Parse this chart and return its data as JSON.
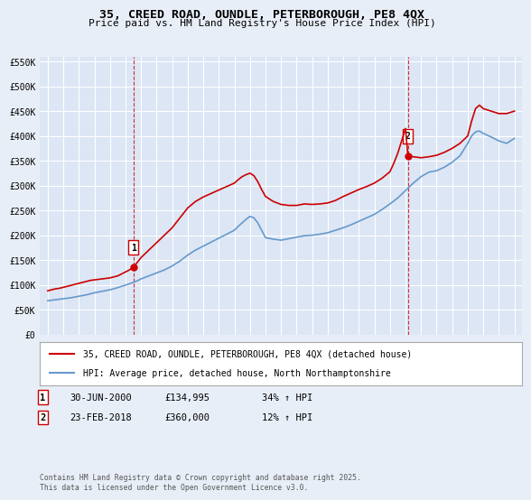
{
  "title_line1": "35, CREED ROAD, OUNDLE, PETERBOROUGH, PE8 4QX",
  "title_line2": "Price paid vs. HM Land Registry's House Price Index (HPI)",
  "bg_color": "#e8eef7",
  "plot_bg_color": "#dce6f5",
  "grid_color": "#ffffff",
  "ylim": [
    0,
    560000
  ],
  "yticks": [
    0,
    50000,
    100000,
    150000,
    200000,
    250000,
    300000,
    350000,
    400000,
    450000,
    500000,
    550000
  ],
  "ytick_labels": [
    "£0",
    "£50K",
    "£100K",
    "£150K",
    "£200K",
    "£250K",
    "£300K",
    "£350K",
    "£400K",
    "£450K",
    "£500K",
    "£550K"
  ],
  "xlim_start": 1994.5,
  "xlim_end": 2025.5,
  "xticks": [
    1995,
    1996,
    1997,
    1998,
    1999,
    2000,
    2001,
    2002,
    2003,
    2004,
    2005,
    2006,
    2007,
    2008,
    2009,
    2010,
    2011,
    2012,
    2013,
    2014,
    2015,
    2016,
    2017,
    2018,
    2019,
    2020,
    2021,
    2022,
    2023,
    2024,
    2025
  ],
  "red_line_color": "#cc0000",
  "blue_line_color": "#6699cc",
  "marker_color": "#cc0000",
  "vline_color": "#cc0000",
  "sale1_x": 2000.5,
  "sale1_y": 134995,
  "sale1_label": "1",
  "sale2_x": 2018.15,
  "sale2_y": 360000,
  "sale2_label": "2",
  "legend_label_red": "35, CREED ROAD, OUNDLE, PETERBOROUGH, PE8 4QX (detached house)",
  "legend_label_blue": "HPI: Average price, detached house, North Northamptonshire",
  "annotation1_date": "30-JUN-2000",
  "annotation1_price": "£134,995",
  "annotation1_hpi": "34% ↑ HPI",
  "annotation2_date": "23-FEB-2018",
  "annotation2_price": "£360,000",
  "annotation2_hpi": "12% ↑ HPI",
  "footer": "Contains HM Land Registry data © Crown copyright and database right 2025.\nThis data is licensed under the Open Government Licence v3.0.",
  "red_x": [
    1995.0,
    1995.25,
    1995.5,
    1995.75,
    1996.0,
    1996.25,
    1996.5,
    1996.75,
    1997.0,
    1997.25,
    1997.5,
    1997.75,
    1998.0,
    1998.25,
    1998.5,
    1998.75,
    1999.0,
    1999.25,
    1999.5,
    1999.75,
    2000.0,
    2000.25,
    2000.5,
    2000.75,
    2001.0,
    2001.5,
    2002.0,
    2002.5,
    2003.0,
    2003.5,
    2004.0,
    2004.5,
    2005.0,
    2005.5,
    2006.0,
    2006.5,
    2007.0,
    2007.25,
    2007.5,
    2007.75,
    2008.0,
    2008.25,
    2008.5,
    2008.75,
    2009.0,
    2009.5,
    2010.0,
    2010.5,
    2011.0,
    2011.5,
    2012.0,
    2012.5,
    2013.0,
    2013.5,
    2014.0,
    2014.5,
    2015.0,
    2015.5,
    2016.0,
    2016.5,
    2017.0,
    2017.25,
    2017.5,
    2017.75,
    2018.0,
    2018.15,
    2018.5,
    2019.0,
    2019.5,
    2020.0,
    2020.5,
    2021.0,
    2021.5,
    2022.0,
    2022.25,
    2022.5,
    2022.75,
    2023.0,
    2023.5,
    2024.0,
    2024.5,
    2025.0
  ],
  "red_y": [
    88000,
    90000,
    92000,
    93000,
    95000,
    97000,
    99000,
    101000,
    103000,
    105000,
    107000,
    109000,
    110000,
    111000,
    112000,
    113000,
    114000,
    116000,
    118000,
    122000,
    126000,
    130000,
    134995,
    145000,
    155000,
    170000,
    185000,
    200000,
    215000,
    235000,
    255000,
    268000,
    277000,
    284000,
    291000,
    298000,
    305000,
    312000,
    318000,
    322000,
    325000,
    320000,
    308000,
    292000,
    278000,
    268000,
    262000,
    260000,
    260000,
    263000,
    262000,
    263000,
    265000,
    270000,
    278000,
    285000,
    292000,
    298000,
    305000,
    315000,
    328000,
    345000,
    365000,
    390000,
    415000,
    360000,
    358000,
    356000,
    358000,
    361000,
    367000,
    375000,
    385000,
    400000,
    430000,
    455000,
    462000,
    455000,
    450000,
    445000,
    445000,
    450000
  ],
  "blue_x": [
    1995.0,
    1995.25,
    1995.5,
    1995.75,
    1996.0,
    1996.25,
    1996.5,
    1996.75,
    1997.0,
    1997.25,
    1997.5,
    1997.75,
    1998.0,
    1998.25,
    1998.5,
    1998.75,
    1999.0,
    1999.25,
    1999.5,
    1999.75,
    2000.0,
    2000.25,
    2000.5,
    2000.75,
    2001.0,
    2001.5,
    2002.0,
    2002.5,
    2003.0,
    2003.5,
    2004.0,
    2004.5,
    2005.0,
    2005.5,
    2006.0,
    2006.5,
    2007.0,
    2007.25,
    2007.5,
    2007.75,
    2008.0,
    2008.25,
    2008.5,
    2008.75,
    2009.0,
    2009.5,
    2010.0,
    2010.5,
    2011.0,
    2011.5,
    2012.0,
    2012.5,
    2013.0,
    2013.5,
    2014.0,
    2014.5,
    2015.0,
    2015.5,
    2016.0,
    2016.5,
    2017.0,
    2017.5,
    2018.0,
    2018.5,
    2019.0,
    2019.5,
    2020.0,
    2020.5,
    2021.0,
    2021.5,
    2022.0,
    2022.25,
    2022.5,
    2022.75,
    2023.0,
    2023.5,
    2024.0,
    2024.5,
    2025.0
  ],
  "blue_y": [
    68000,
    69000,
    70000,
    71000,
    72000,
    73000,
    74000,
    75500,
    77000,
    78500,
    80000,
    82000,
    84000,
    85500,
    87000,
    88500,
    90000,
    92000,
    94500,
    97000,
    99500,
    102000,
    105000,
    108000,
    112000,
    118000,
    124000,
    130000,
    138000,
    148000,
    160000,
    170000,
    178000,
    186000,
    194000,
    202000,
    210000,
    218000,
    225000,
    232000,
    238000,
    235000,
    225000,
    210000,
    195000,
    192000,
    190000,
    193000,
    196000,
    199000,
    200000,
    202000,
    205000,
    210000,
    215000,
    221000,
    228000,
    235000,
    242000,
    252000,
    263000,
    275000,
    290000,
    305000,
    318000,
    327000,
    330000,
    337000,
    347000,
    360000,
    385000,
    400000,
    408000,
    410000,
    405000,
    398000,
    390000,
    385000,
    395000
  ]
}
